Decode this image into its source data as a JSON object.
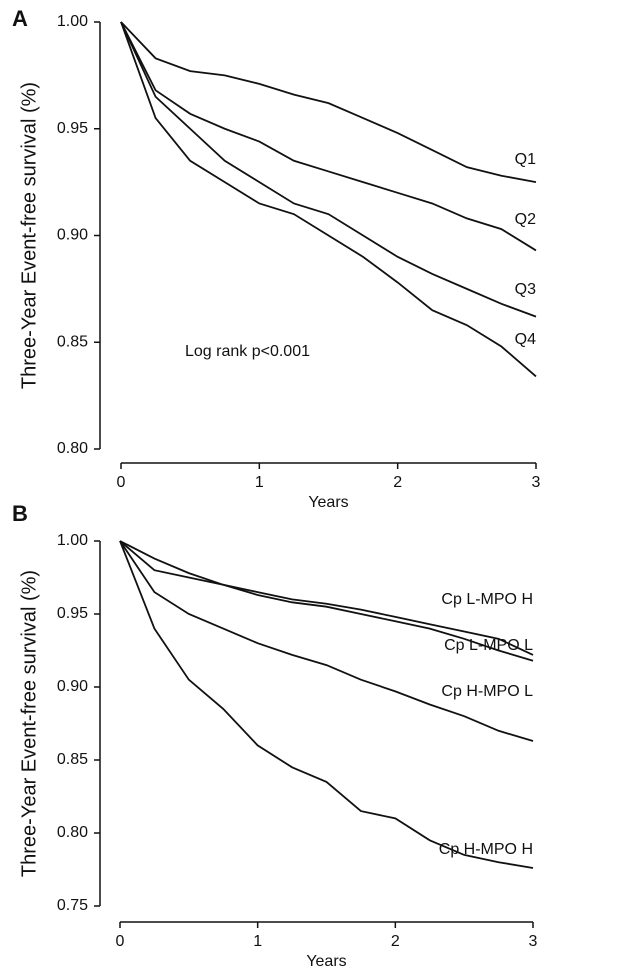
{
  "chart_data": [
    {
      "type": "line",
      "panel_label": "A",
      "ylabel": "Three-Year Event-free survival (%)",
      "xlabel": "Years",
      "annotation": "Log rank p<0.001",
      "x": [
        0,
        0.25,
        0.5,
        0.75,
        1,
        1.25,
        1.5,
        1.75,
        2,
        2.25,
        2.5,
        2.75,
        3
      ],
      "xlim": [
        0,
        3
      ],
      "xticks": [
        0,
        1,
        2,
        3
      ],
      "ylim": [
        0.8,
        1.0
      ],
      "yticks": [
        {
          "value": 0.8,
          "label": "0.80"
        },
        {
          "value": 0.85,
          "label": "0.85"
        },
        {
          "value": 0.9,
          "label": "0.90"
        },
        {
          "value": 0.95,
          "label": "0.95"
        },
        {
          "value": 1.0,
          "label": "1.00"
        }
      ],
      "series": [
        {
          "name": "Q1",
          "color": "#111111",
          "values": [
            1.0,
            0.983,
            0.977,
            0.975,
            0.971,
            0.966,
            0.962,
            0.955,
            0.948,
            0.94,
            0.932,
            0.928,
            0.925
          ]
        },
        {
          "name": "Q2",
          "color": "#111111",
          "values": [
            1.0,
            0.968,
            0.957,
            0.95,
            0.944,
            0.935,
            0.93,
            0.925,
            0.92,
            0.915,
            0.908,
            0.903,
            0.893
          ]
        },
        {
          "name": "Q3",
          "color": "#111111",
          "values": [
            1.0,
            0.965,
            0.95,
            0.935,
            0.925,
            0.915,
            0.91,
            0.9,
            0.89,
            0.882,
            0.875,
            0.868,
            0.862
          ]
        },
        {
          "name": "Q4",
          "color": "#111111",
          "values": [
            1.0,
            0.955,
            0.935,
            0.925,
            0.915,
            0.91,
            0.9,
            0.89,
            0.878,
            0.865,
            0.858,
            0.848,
            0.834
          ]
        }
      ]
    },
    {
      "type": "line",
      "panel_label": "B",
      "ylabel": "Three-Year Event-free survival (%)",
      "xlabel": "Years",
      "x": [
        0,
        0.25,
        0.5,
        0.75,
        1,
        1.25,
        1.5,
        1.75,
        2,
        2.25,
        2.5,
        2.75,
        3
      ],
      "xlim": [
        0,
        3
      ],
      "xticks": [
        0,
        1,
        2,
        3
      ],
      "ylim": [
        0.75,
        1.0
      ],
      "yticks": [
        {
          "value": 0.75,
          "label": "0.75"
        },
        {
          "value": 0.8,
          "label": "0.80"
        },
        {
          "value": 0.85,
          "label": "0.85"
        },
        {
          "value": 0.9,
          "label": "0.90"
        },
        {
          "value": 0.95,
          "label": "0.95"
        },
        {
          "value": 1.0,
          "label": "1.00"
        }
      ],
      "series": [
        {
          "name": "Cp L-MPO H",
          "color": "#111111",
          "values": [
            1.0,
            0.98,
            0.975,
            0.97,
            0.965,
            0.96,
            0.957,
            0.953,
            0.948,
            0.943,
            0.938,
            0.933,
            0.922
          ]
        },
        {
          "name": "Cp L-MPO L",
          "color": "#111111",
          "values": [
            1.0,
            0.988,
            0.978,
            0.97,
            0.963,
            0.958,
            0.955,
            0.95,
            0.945,
            0.94,
            0.933,
            0.925,
            0.918
          ]
        },
        {
          "name": "Cp H-MPO L",
          "color": "#111111",
          "values": [
            1.0,
            0.965,
            0.95,
            0.94,
            0.93,
            0.922,
            0.915,
            0.905,
            0.897,
            0.888,
            0.88,
            0.87,
            0.863
          ]
        },
        {
          "name": "Cp H-MPO H",
          "color": "#111111",
          "values": [
            1.0,
            0.94,
            0.905,
            0.885,
            0.86,
            0.845,
            0.835,
            0.815,
            0.81,
            0.795,
            0.785,
            0.78,
            0.776
          ]
        }
      ]
    }
  ]
}
